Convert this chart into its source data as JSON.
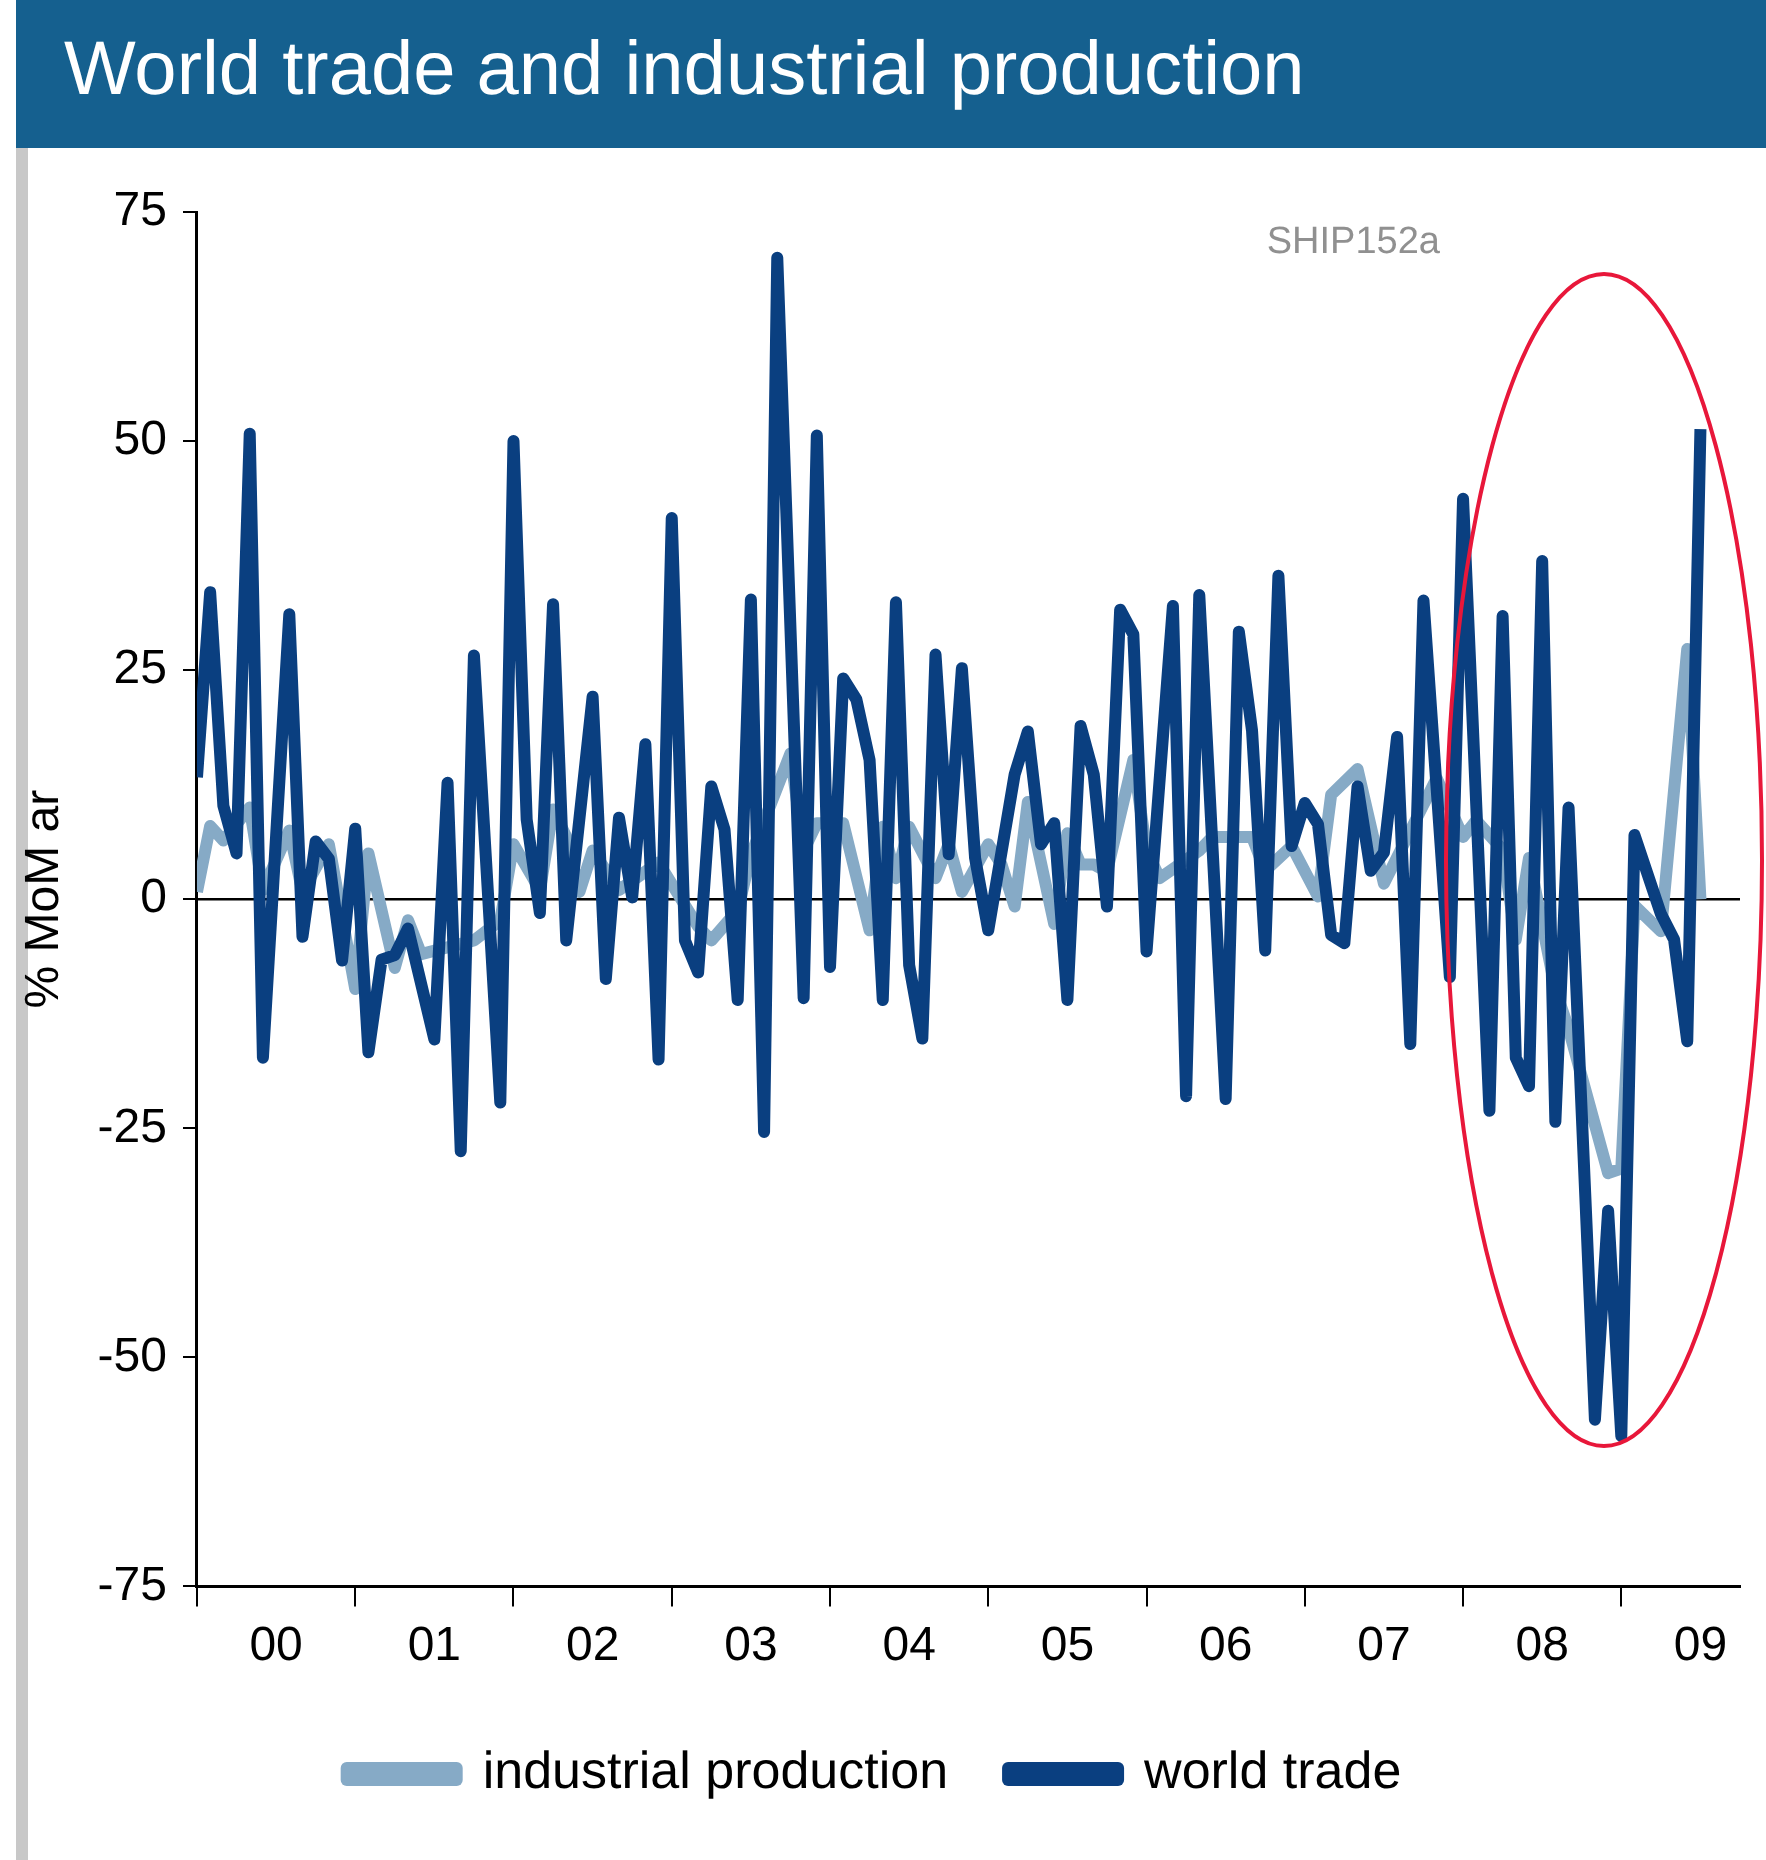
{
  "chart_data": {
    "type": "line",
    "title": "World trade and industrial production",
    "ylabel": "% MoM ar",
    "annotations": [
      "SHIP152a"
    ],
    "xlim": [
      "2000-01",
      "2009-10"
    ],
    "xticks": [
      {
        "value": "2000-01",
        "label": null
      },
      {
        "value": "2000-07",
        "label": "00"
      },
      {
        "value": "2001-01",
        "label": null
      },
      {
        "value": "2001-07",
        "label": "01"
      },
      {
        "value": "2002-01",
        "label": null
      },
      {
        "value": "2002-07",
        "label": "02"
      },
      {
        "value": "2003-01",
        "label": null
      },
      {
        "value": "2003-07",
        "label": "03"
      },
      {
        "value": "2004-01",
        "label": null
      },
      {
        "value": "2004-07",
        "label": "04"
      },
      {
        "value": "2005-01",
        "label": null
      },
      {
        "value": "2005-07",
        "label": "05"
      },
      {
        "value": "2006-01",
        "label": null
      },
      {
        "value": "2006-07",
        "label": "06"
      },
      {
        "value": "2007-01",
        "label": null
      },
      {
        "value": "2007-07",
        "label": "07"
      },
      {
        "value": "2008-01",
        "label": null
      },
      {
        "value": "2008-07",
        "label": "08"
      },
      {
        "value": "2009-01",
        "label": null
      },
      {
        "value": "2009-07",
        "label": "09"
      }
    ],
    "ylim": [
      -75,
      75
    ],
    "yticks": [
      -75,
      -50,
      -25,
      0,
      25,
      50,
      75
    ],
    "ref_lines": [
      {
        "axis": "y",
        "value": 0,
        "color": "#000000"
      }
    ],
    "legend": "bottom",
    "series": [
      {
        "name": "industrial production",
        "color": "#86aac6",
        "x": [
          "2000-01",
          "2000-02",
          "2000-03",
          "2000-05",
          "2000-06",
          "2000-08",
          "2000-09",
          "2000-11",
          "2001-01",
          "2001-02",
          "2001-04",
          "2001-05",
          "2001-06",
          "2001-10",
          "2001-12",
          "2002-01",
          "2002-03",
          "2002-04",
          "2002-05",
          "2002-06",
          "2002-07",
          "2002-09",
          "2002-12",
          "2003-03",
          "2003-04",
          "2003-06",
          "2003-07",
          "2003-10",
          "2003-11",
          "2003-12",
          "2004-02",
          "2004-04",
          "2004-05",
          "2004-06",
          "2004-07",
          "2004-09",
          "2004-10",
          "2004-11",
          "2005-01",
          "2005-02",
          "2005-03",
          "2005-04",
          "2005-06",
          "2005-07",
          "2005-08",
          "2005-09",
          "2005-10",
          "2005-12",
          "2006-01",
          "2006-02",
          "2006-05",
          "2006-06",
          "2006-09",
          "2006-10",
          "2006-12",
          "2007-02",
          "2007-03",
          "2007-05",
          "2007-07",
          "2007-11",
          "2008-01",
          "2008-02",
          "2008-04",
          "2008-05",
          "2008-06",
          "2008-08",
          "2008-09",
          "2008-12",
          "2009-01",
          "2009-02",
          "2009-04",
          "2009-06",
          "2009-07"
        ],
        "values": [
          0.8,
          8,
          6.4,
          10,
          1,
          7.5,
          0.8,
          6,
          -9.8,
          5,
          -7.5,
          -2.3,
          -6,
          -4.5,
          -2.3,
          6,
          1,
          9.8,
          6.8,
          0.8,
          5.3,
          1,
          4,
          -3,
          -4.5,
          -1.2,
          4.8,
          15.9,
          5.3,
          8.3,
          8.3,
          -3.4,
          7.9,
          2.3,
          7.9,
          2.3,
          6,
          0.8,
          6,
          3.8,
          -0.8,
          10.6,
          -2.7,
          7.2,
          3.8,
          3.8,
          3,
          15.2,
          5.3,
          2.3,
          5.3,
          6.8,
          6.8,
          3.1,
          5.8,
          0.3,
          11.4,
          14.2,
          1.7,
          13.2,
          6.8,
          8.6,
          5.4,
          -4.4,
          4.5,
          -9.9,
          -14.1,
          -29.9,
          -29.4,
          -0.7,
          -3.5,
          27.3,
          0
        ]
      },
      {
        "name": "world trade",
        "color": "#0a3f80",
        "x": [
          "2000-01",
          "2000-02",
          "2000-03",
          "2000-04",
          "2000-05",
          "2000-06",
          "2000-08",
          "2000-09",
          "2000-10",
          "2000-11",
          "2000-12",
          "2001-01",
          "2001-02",
          "2001-03",
          "2001-04",
          "2001-05",
          "2001-07",
          "2001-08",
          "2001-09",
          "2001-10",
          "2001-12",
          "2002-01",
          "2002-02",
          "2002-03",
          "2002-04",
          "2002-05",
          "2002-07",
          "2002-08",
          "2002-09",
          "2002-10",
          "2002-11",
          "2002-12",
          "2003-01",
          "2003-02",
          "2003-03",
          "2003-04",
          "2003-05",
          "2003-06",
          "2003-07",
          "2003-08",
          "2003-09",
          "2003-11",
          "2003-12",
          "2004-01",
          "2004-02",
          "2004-03",
          "2004-04",
          "2004-05",
          "2004-06",
          "2004-07",
          "2004-08",
          "2004-09",
          "2004-10",
          "2004-11",
          "2004-12",
          "2005-01",
          "2005-03",
          "2005-04",
          "2005-05",
          "2005-06",
          "2005-07",
          "2005-08",
          "2005-09",
          "2005-10",
          "2005-11",
          "2005-12",
          "2006-01",
          "2006-03",
          "2006-04",
          "2006-05",
          "2006-07",
          "2006-08",
          "2006-09",
          "2006-10",
          "2006-11",
          "2006-12",
          "2007-01",
          "2007-02",
          "2007-03",
          "2007-04",
          "2007-05",
          "2007-06",
          "2007-07",
          "2007-08",
          "2007-09",
          "2007-10",
          "2007-12",
          "2008-01",
          "2008-03",
          "2008-04",
          "2008-05",
          "2008-06",
          "2008-07",
          "2008-08",
          "2008-09",
          "2008-11",
          "2008-12",
          "2009-01",
          "2009-02",
          "2009-04",
          "2009-05",
          "2009-06",
          "2009-07"
        ],
        "values": [
          13.3,
          33.5,
          10.2,
          5,
          50.8,
          -17.3,
          31.1,
          -4.1,
          6.3,
          4.4,
          -6.7,
          7.7,
          -16.7,
          -6.6,
          -6.1,
          -3.2,
          -15.3,
          12.7,
          -27.5,
          26.6,
          -22.2,
          50,
          8.7,
          -1.5,
          32.2,
          -4.5,
          22.1,
          -8.7,
          8.9,
          0.2,
          16.9,
          -17.5,
          41.6,
          -4.5,
          -8,
          12.3,
          7.6,
          -11,
          32.7,
          -25.4,
          70,
          -10.8,
          50.6,
          -7.4,
          24.1,
          21.8,
          15.2,
          -11,
          32.4,
          -7.2,
          -15.2,
          26.7,
          4.9,
          25.2,
          4.5,
          -3.4,
          13.6,
          18.3,
          6,
          8.3,
          -11,
          18.9,
          13.6,
          -0.8,
          31.6,
          28.9,
          -5.7,
          32,
          -21.5,
          33.2,
          -21.8,
          29.2,
          18.4,
          -5.6,
          35.3,
          5.8,
          10.5,
          8.2,
          -3.9,
          -4.8,
          12.3,
          3.1,
          5.1,
          17.7,
          -15.8,
          32.6,
          -8.5,
          43.7,
          -23.1,
          30.9,
          -17.3,
          -20.4,
          36.9,
          -24.3,
          10,
          -56.8,
          -34,
          -58.6,
          7,
          -1.6,
          -4.4,
          -15.5,
          51.3
        ]
      }
    ]
  }
}
